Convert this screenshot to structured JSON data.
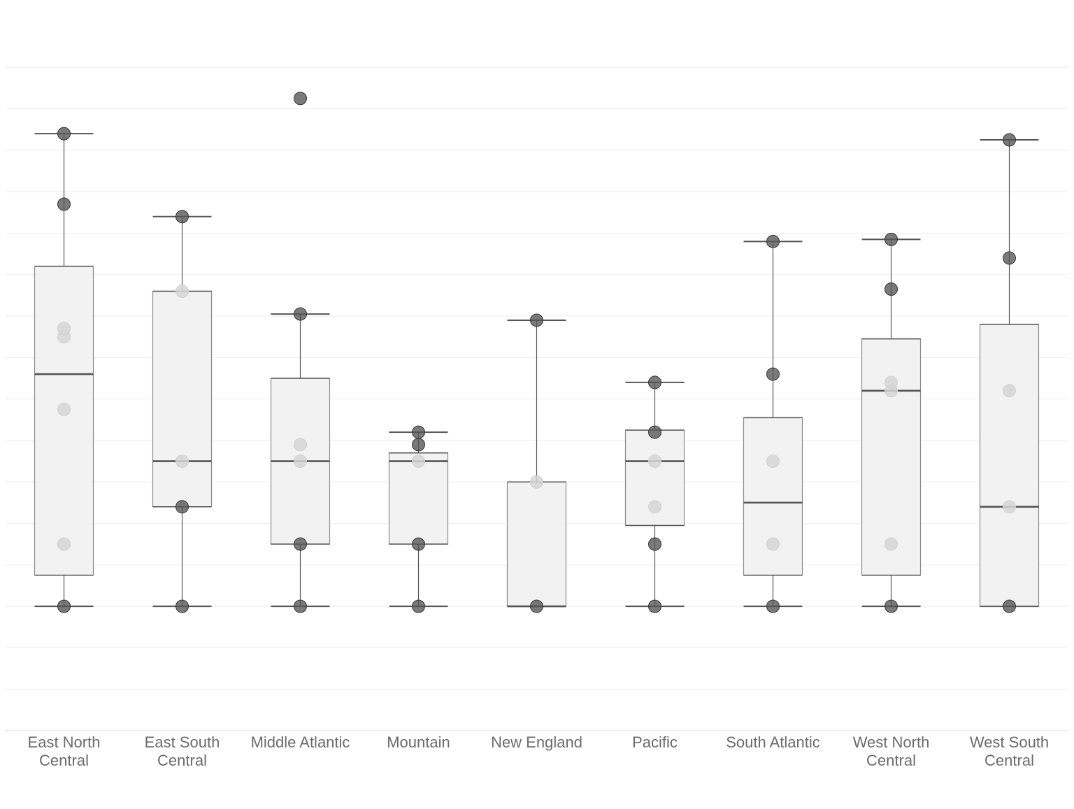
{
  "chart_data": {
    "type": "box",
    "title": "",
    "xlabel": "",
    "ylabel": "",
    "y_tick_labels_shown": false,
    "grid": true,
    "ylim": [
      -3,
      14
    ],
    "colors": {
      "box_fill": "#f2f2f2",
      "box_stroke": "#8a8a8a",
      "median": "#555555",
      "whisker": "#555555",
      "gridline": "#eeeeee",
      "point_dark": "#555555",
      "point_light": "#d6d6d6",
      "label": "#6b6b6b"
    },
    "categories": [
      "East North Central",
      "East South Central",
      "Middle Atlantic",
      "Mountain",
      "New England",
      "Pacific",
      "South Atlantic",
      "West North Central",
      "West South Central"
    ],
    "category_lines": [
      [
        "East North",
        "Central"
      ],
      [
        "East South",
        "Central"
      ],
      [
        "Middle Atlantic"
      ],
      [
        "Mountain"
      ],
      [
        "New England"
      ],
      [
        "Pacific"
      ],
      [
        "South Atlantic"
      ],
      [
        "West North",
        "Central"
      ],
      [
        "West South",
        "Central"
      ]
    ],
    "boxes": [
      {
        "whisker_low": 0,
        "q1": 0.75,
        "median": 5.6,
        "q3": 8.2,
        "whisker_high": 11.4
      },
      {
        "whisker_low": 0,
        "q1": 2.4,
        "median": 3.5,
        "q3": 7.6,
        "whisker_high": 9.4
      },
      {
        "whisker_low": 0,
        "q1": 1.5,
        "median": 3.5,
        "q3": 5.5,
        "whisker_high": 7.05
      },
      {
        "whisker_low": 0,
        "q1": 1.5,
        "median": 3.5,
        "q3": 3.7,
        "whisker_high": 4.2
      },
      {
        "whisker_low": 0,
        "q1": 0,
        "median": 0,
        "q3": 3.0,
        "whisker_high": 6.9
      },
      {
        "whisker_low": 0,
        "q1": 1.95,
        "median": 3.5,
        "q3": 4.25,
        "whisker_high": 5.4
      },
      {
        "whisker_low": 0,
        "q1": 0.75,
        "median": 2.5,
        "q3": 4.55,
        "whisker_high": 8.8
      },
      {
        "whisker_low": 0,
        "q1": 0.75,
        "median": 5.2,
        "q3": 6.45,
        "whisker_high": 8.85
      },
      {
        "whisker_low": 0,
        "q1": 0,
        "median": 2.4,
        "q3": 6.8,
        "whisker_high": 11.25
      }
    ],
    "points": [
      [
        {
          "y": 0,
          "shade": "dark"
        },
        {
          "y": 1.5,
          "shade": "light"
        },
        {
          "y": 4.75,
          "shade": "light"
        },
        {
          "y": 6.5,
          "shade": "light"
        },
        {
          "y": 6.7,
          "shade": "light"
        },
        {
          "y": 9.7,
          "shade": "dark"
        },
        {
          "y": 11.4,
          "shade": "dark"
        }
      ],
      [
        {
          "y": 0,
          "shade": "dark"
        },
        {
          "y": 2.4,
          "shade": "dark"
        },
        {
          "y": 3.5,
          "shade": "light"
        },
        {
          "y": 7.6,
          "shade": "light"
        },
        {
          "y": 9.4,
          "shade": "dark"
        }
      ],
      [
        {
          "y": 0,
          "shade": "dark"
        },
        {
          "y": 1.5,
          "shade": "dark"
        },
        {
          "y": 3.5,
          "shade": "light"
        },
        {
          "y": 3.9,
          "shade": "light"
        },
        {
          "y": 7.05,
          "shade": "dark"
        },
        {
          "y": 12.25,
          "shade": "dark"
        }
      ],
      [
        {
          "y": 0,
          "shade": "dark"
        },
        {
          "y": 1.5,
          "shade": "dark"
        },
        {
          "y": 3.5,
          "shade": "light"
        },
        {
          "y": 3.9,
          "shade": "dark"
        },
        {
          "y": 4.2,
          "shade": "dark"
        }
      ],
      [
        {
          "y": 0,
          "shade": "dark"
        },
        {
          "y": 3.0,
          "shade": "light"
        },
        {
          "y": 6.9,
          "shade": "dark"
        }
      ],
      [
        {
          "y": 0,
          "shade": "dark"
        },
        {
          "y": 1.5,
          "shade": "dark"
        },
        {
          "y": 2.4,
          "shade": "light"
        },
        {
          "y": 3.5,
          "shade": "light"
        },
        {
          "y": 4.2,
          "shade": "dark"
        },
        {
          "y": 5.4,
          "shade": "dark"
        }
      ],
      [
        {
          "y": 0,
          "shade": "dark"
        },
        {
          "y": 1.5,
          "shade": "light"
        },
        {
          "y": 3.5,
          "shade": "light"
        },
        {
          "y": 5.6,
          "shade": "dark"
        },
        {
          "y": 8.8,
          "shade": "dark"
        }
      ],
      [
        {
          "y": 0,
          "shade": "dark"
        },
        {
          "y": 1.5,
          "shade": "light"
        },
        {
          "y": 5.2,
          "shade": "light"
        },
        {
          "y": 5.4,
          "shade": "light"
        },
        {
          "y": 7.65,
          "shade": "dark"
        },
        {
          "y": 8.85,
          "shade": "dark"
        }
      ],
      [
        {
          "y": 0,
          "shade": "dark"
        },
        {
          "y": 2.4,
          "shade": "light"
        },
        {
          "y": 5.2,
          "shade": "light"
        },
        {
          "y": 8.4,
          "shade": "dark"
        },
        {
          "y": 11.25,
          "shade": "dark"
        }
      ]
    ]
  }
}
